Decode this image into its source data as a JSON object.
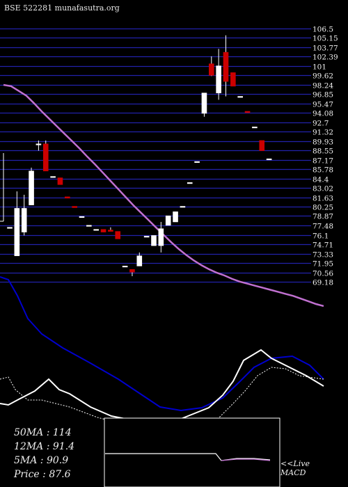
{
  "header": {
    "symbol": "BSE 522281",
    "site": "munafasutra.org"
  },
  "stats": [
    {
      "label": "50MA",
      "value": "114"
    },
    {
      "label": "12MA",
      "value": "91.4"
    },
    {
      "label": "5MA",
      "value": "90.9"
    },
    {
      "label": "Price",
      "value": "87.6"
    }
  ],
  "macd_label": [
    "<<Live",
    "MACD"
  ],
  "colors": {
    "up": "#ffffff",
    "down": "#cc0000",
    "ma_long": "#c070d0",
    "grid": "#2222aa",
    "indicator": "#0000cc"
  },
  "chart_data": {
    "type": "candlestick",
    "price_levels": [
      "106.5",
      "105.15",
      "103.77",
      "102.39",
      "101",
      "99.62",
      "98.24",
      "96.85",
      "95.47",
      "94.08",
      "92.7",
      "91.32",
      "89.93",
      "88.55",
      "87.17",
      "85.78",
      "84.4",
      "83.02",
      "81.63",
      "80.25",
      "78.87",
      "77.48",
      "76.1",
      "74.71",
      "73.33",
      "71.95",
      "70.56",
      "69.18"
    ],
    "candles": [
      {
        "o": 77.2,
        "h": 77.2,
        "l": 77.2,
        "c": 77.2
      },
      {
        "o": 73.0,
        "h": 82.5,
        "l": 73.0,
        "c": 80.0
      },
      {
        "o": 76.5,
        "h": 82.0,
        "l": 76.0,
        "c": 80.0
      },
      {
        "o": 80.5,
        "h": 86.0,
        "l": 80.5,
        "c": 85.5
      },
      {
        "o": 89.5,
        "h": 90.0,
        "l": 88.5,
        "c": 89.5
      },
      {
        "o": 89.5,
        "h": 90.0,
        "l": 85.5,
        "c": 85.5
      },
      {
        "o": 84.7,
        "h": 84.7,
        "l": 84.7,
        "c": 84.7
      },
      {
        "o": 84.5,
        "h": 84.5,
        "l": 83.5,
        "c": 83.5
      },
      {
        "o": 81.7,
        "h": 81.7,
        "l": 81.5,
        "c": 81.5
      },
      {
        "o": 80.3,
        "h": 80.3,
        "l": 80.1,
        "c": 80.1
      },
      {
        "o": 78.8,
        "h": 78.8,
        "l": 78.8,
        "c": 78.8
      },
      {
        "o": 77.5,
        "h": 77.5,
        "l": 77.5,
        "c": 77.5
      },
      {
        "o": 76.9,
        "h": 76.9,
        "l": 76.9,
        "c": 76.9
      },
      {
        "o": 76.9,
        "h": 76.9,
        "l": 76.5,
        "c": 76.5
      },
      {
        "o": 76.8,
        "h": 77.2,
        "l": 76.6,
        "c": 76.6
      },
      {
        "o": 76.6,
        "h": 76.6,
        "l": 75.5,
        "c": 75.5
      },
      {
        "o": 71.5,
        "h": 71.5,
        "l": 71.5,
        "c": 71.5
      },
      {
        "o": 71.0,
        "h": 71.0,
        "l": 70.0,
        "c": 70.6
      },
      {
        "o": 71.5,
        "h": 73.5,
        "l": 71.5,
        "c": 73.0
      },
      {
        "o": 75.9,
        "h": 75.9,
        "l": 75.9,
        "c": 75.9
      },
      {
        "o": 74.5,
        "h": 76.0,
        "l": 74.5,
        "c": 76.0
      },
      {
        "o": 74.5,
        "h": 78.0,
        "l": 73.5,
        "c": 77.0
      },
      {
        "o": 77.5,
        "h": 78.9,
        "l": 77.5,
        "c": 78.9
      },
      {
        "o": 78.0,
        "h": 79.5,
        "l": 78.0,
        "c": 79.5
      },
      {
        "o": 80.3,
        "h": 80.3,
        "l": 80.3,
        "c": 80.3
      },
      {
        "o": 83.8,
        "h": 83.8,
        "l": 83.8,
        "c": 83.8
      },
      {
        "o": 86.9,
        "h": 86.9,
        "l": 86.9,
        "c": 86.9
      },
      {
        "o": 94.0,
        "h": 97.0,
        "l": 93.5,
        "c": 97.0
      },
      {
        "o": 101.3,
        "h": 102.4,
        "l": 99.5,
        "c": 99.6
      },
      {
        "o": 97.0,
        "h": 103.5,
        "l": 96.0,
        "c": 101.0
      },
      {
        "o": 103.0,
        "h": 105.5,
        "l": 96.5,
        "c": 98.7
      },
      {
        "o": 100.0,
        "h": 100.0,
        "l": 98.0,
        "c": 98.0
      },
      {
        "o": 96.5,
        "h": 96.5,
        "l": 96.5,
        "c": 96.5
      },
      {
        "o": 94.3,
        "h": 94.3,
        "l": 94.1,
        "c": 94.1
      },
      {
        "o": 92.0,
        "h": 92.0,
        "l": 92.0,
        "c": 92.0
      },
      {
        "o": 90.0,
        "h": 90.0,
        "l": 88.5,
        "c": 88.5
      },
      {
        "o": 87.3,
        "h": 87.3,
        "l": 87.3,
        "c": 87.3
      }
    ],
    "ma_long": [
      98.2,
      98.0,
      97.3,
      96.6,
      95.5,
      94.3,
      93.2,
      92.1,
      91.0,
      89.9,
      88.8,
      87.6,
      86.5,
      85.3,
      84.1,
      82.9,
      81.7,
      80.5,
      79.4,
      78.3,
      77.2,
      76.1,
      75.0,
      74.0,
      73.1,
      72.3,
      71.6,
      71.0,
      70.5,
      70.1,
      69.6,
      69.2,
      68.9,
      68.6,
      68.3,
      68.0,
      67.7,
      67.4,
      67.1,
      66.7,
      66.3,
      65.9,
      65.6
    ]
  }
}
